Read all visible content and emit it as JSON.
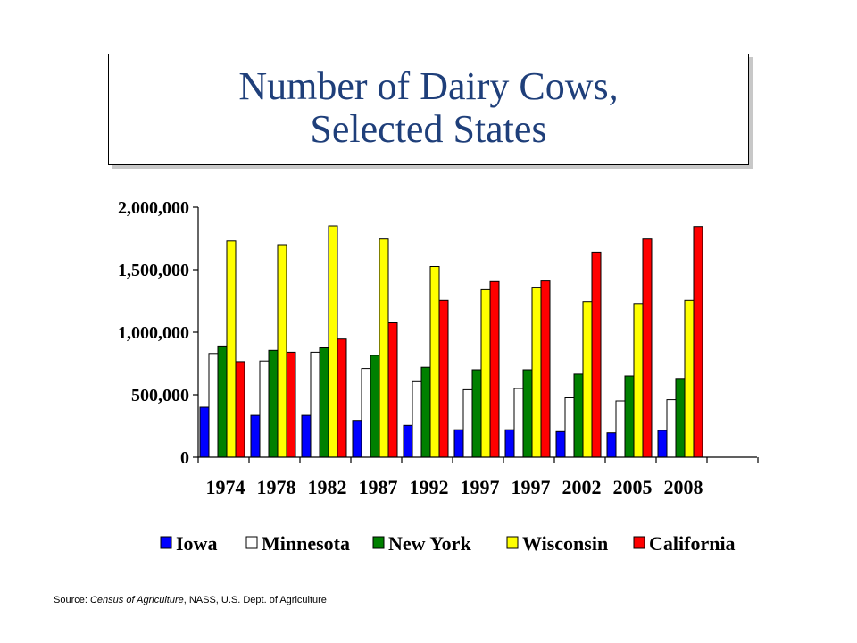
{
  "title": {
    "line1": "Number of Dairy Cows,",
    "line2": "Selected States"
  },
  "source": {
    "prefix": "Source: ",
    "italic": "Census of Agriculture",
    "suffix": ", NASS, U.S. Dept. of Agriculture"
  },
  "chart_data": {
    "type": "bar",
    "categories": [
      "1974",
      "1978",
      "1982",
      "1987",
      "1992",
      "1997",
      "1997",
      "2002",
      "2005",
      "2008"
    ],
    "series": [
      {
        "name": "Iowa",
        "color": "#0000ff",
        "values": [
          400000,
          335000,
          335000,
          295000,
          255000,
          220000,
          220000,
          205000,
          195000,
          215000
        ]
      },
      {
        "name": "Minnesota",
        "color": "#ffffff",
        "values": [
          830000,
          770000,
          840000,
          710000,
          605000,
          540000,
          550000,
          475000,
          450000,
          460000
        ]
      },
      {
        "name": "New York",
        "color": "#008000",
        "values": [
          890000,
          855000,
          875000,
          815000,
          720000,
          700000,
          700000,
          665000,
          650000,
          630000
        ]
      },
      {
        "name": "Wisconsin",
        "color": "#ffff00",
        "values": [
          1730000,
          1700000,
          1850000,
          1745000,
          1525000,
          1340000,
          1360000,
          1245000,
          1230000,
          1255000
        ]
      },
      {
        "name": "California",
        "color": "#ff0000",
        "values": [
          765000,
          840000,
          945000,
          1075000,
          1255000,
          1405000,
          1410000,
          1640000,
          1745000,
          1845000
        ]
      }
    ],
    "yticks": [
      "2,000,000",
      "1,500,000",
      "1,000,000",
      "500,000",
      "0"
    ],
    "ytick_values": [
      2000000,
      1500000,
      1000000,
      500000,
      0
    ],
    "ylim": [
      0,
      2000000
    ],
    "legend_position": "bottom",
    "grid": false
  }
}
